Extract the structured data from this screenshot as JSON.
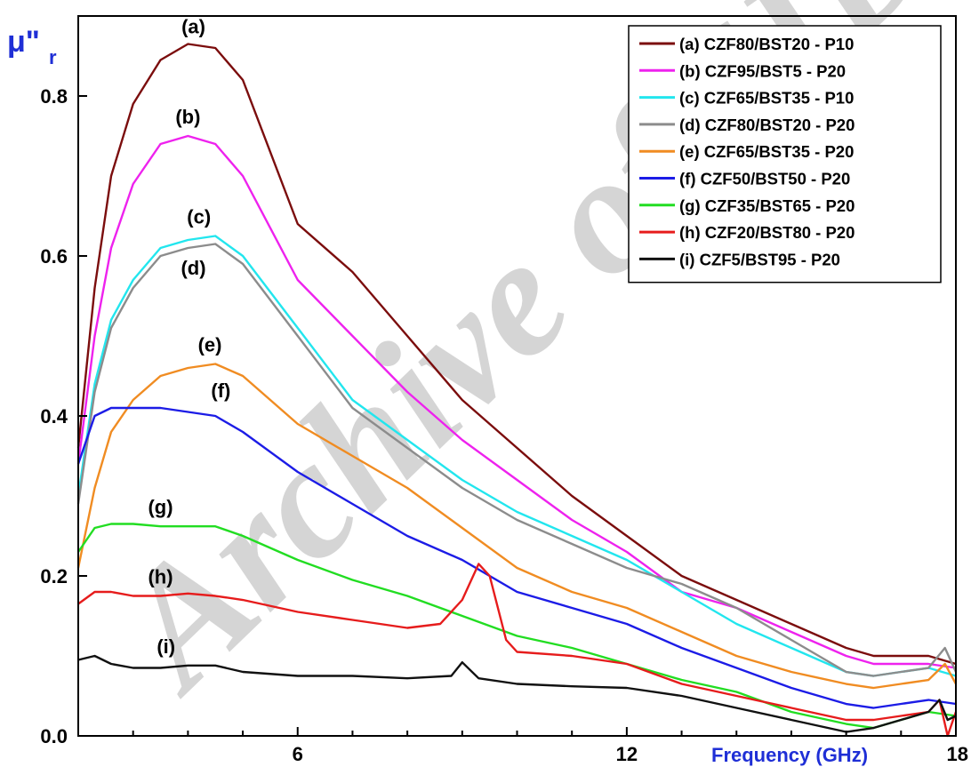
{
  "chart_data": {
    "type": "line",
    "ylabel": "μ\"r",
    "xlabel": "Frequency (GHz)",
    "xlim": [
      2,
      18
    ],
    "ylim": [
      0,
      0.9
    ],
    "x_ticks": [
      6,
      12,
      18
    ],
    "y_ticks": [
      0.0,
      0.2,
      0.4,
      0.6,
      0.8
    ],
    "x_tick_labels": [
      "6",
      "12",
      "18"
    ],
    "y_tick_labels": [
      "0.0",
      "0.2",
      "0.4",
      "0.6",
      "0.8"
    ],
    "grid": false,
    "legend_position": "top-right",
    "watermark": "Archive of SID",
    "series": [
      {
        "name": "(a) CZF80/BST20 - P10",
        "curve_label": "(a)",
        "color": "#7b0d0d",
        "points": [
          [
            2.0,
            0.36
          ],
          [
            2.3,
            0.56
          ],
          [
            2.6,
            0.7
          ],
          [
            3.0,
            0.79
          ],
          [
            3.5,
            0.845
          ],
          [
            4.0,
            0.865
          ],
          [
            4.5,
            0.86
          ],
          [
            5.0,
            0.82
          ],
          [
            6.0,
            0.64
          ],
          [
            7.0,
            0.58
          ],
          [
            8.0,
            0.5
          ],
          [
            9.0,
            0.42
          ],
          [
            10.0,
            0.36
          ],
          [
            11.0,
            0.3
          ],
          [
            12.0,
            0.25
          ],
          [
            13.0,
            0.2
          ],
          [
            14.0,
            0.17
          ],
          [
            15.0,
            0.14
          ],
          [
            16.0,
            0.11
          ],
          [
            16.5,
            0.1
          ],
          [
            17.0,
            0.1
          ],
          [
            17.5,
            0.1
          ],
          [
            18.0,
            0.09
          ]
        ]
      },
      {
        "name": "(b) CZF95/BST5 - P20",
        "curve_label": "(b)",
        "color": "#ee22ee",
        "points": [
          [
            2.0,
            0.34
          ],
          [
            2.3,
            0.5
          ],
          [
            2.6,
            0.61
          ],
          [
            3.0,
            0.69
          ],
          [
            3.5,
            0.74
          ],
          [
            4.0,
            0.75
          ],
          [
            4.5,
            0.74
          ],
          [
            5.0,
            0.7
          ],
          [
            6.0,
            0.57
          ],
          [
            7.0,
            0.5
          ],
          [
            8.0,
            0.43
          ],
          [
            9.0,
            0.37
          ],
          [
            10.0,
            0.32
          ],
          [
            11.0,
            0.27
          ],
          [
            12.0,
            0.23
          ],
          [
            13.0,
            0.18
          ],
          [
            14.0,
            0.16
          ],
          [
            15.0,
            0.13
          ],
          [
            16.0,
            0.1
          ],
          [
            16.5,
            0.09
          ],
          [
            17.0,
            0.09
          ],
          [
            17.5,
            0.09
          ],
          [
            18.0,
            0.085
          ]
        ]
      },
      {
        "name": "(c) CZF65/BST35 - P10",
        "curve_label": "(c)",
        "color": "#22e6ee",
        "points": [
          [
            2.0,
            0.3
          ],
          [
            2.3,
            0.44
          ],
          [
            2.6,
            0.52
          ],
          [
            3.0,
            0.57
          ],
          [
            3.5,
            0.61
          ],
          [
            4.0,
            0.62
          ],
          [
            4.5,
            0.625
          ],
          [
            5.0,
            0.6
          ],
          [
            6.0,
            0.51
          ],
          [
            7.0,
            0.42
          ],
          [
            8.0,
            0.37
          ],
          [
            9.0,
            0.32
          ],
          [
            10.0,
            0.28
          ],
          [
            11.0,
            0.25
          ],
          [
            12.0,
            0.22
          ],
          [
            13.0,
            0.18
          ],
          [
            14.0,
            0.14
          ],
          [
            15.0,
            0.11
          ],
          [
            16.0,
            0.08
          ],
          [
            16.5,
            0.075
          ],
          [
            17.0,
            0.08
          ],
          [
            17.5,
            0.085
          ],
          [
            18.0,
            0.075
          ]
        ]
      },
      {
        "name": "(d) CZF80/BST20 - P20",
        "curve_label": "(d)",
        "color": "#8c8c8c",
        "points": [
          [
            2.0,
            0.29
          ],
          [
            2.3,
            0.43
          ],
          [
            2.6,
            0.51
          ],
          [
            3.0,
            0.56
          ],
          [
            3.5,
            0.6
          ],
          [
            4.0,
            0.61
          ],
          [
            4.5,
            0.615
          ],
          [
            5.0,
            0.59
          ],
          [
            6.0,
            0.5
          ],
          [
            7.0,
            0.41
          ],
          [
            8.0,
            0.36
          ],
          [
            9.0,
            0.31
          ],
          [
            10.0,
            0.27
          ],
          [
            11.0,
            0.24
          ],
          [
            12.0,
            0.21
          ],
          [
            13.0,
            0.19
          ],
          [
            14.0,
            0.16
          ],
          [
            15.0,
            0.12
          ],
          [
            16.0,
            0.08
          ],
          [
            16.5,
            0.075
          ],
          [
            17.0,
            0.08
          ],
          [
            17.5,
            0.085
          ],
          [
            17.8,
            0.11
          ],
          [
            18.0,
            0.08
          ]
        ]
      },
      {
        "name": "(e) CZF65/BST35 - P20",
        "curve_label": "(e)",
        "color": "#f08c22",
        "points": [
          [
            2.0,
            0.21
          ],
          [
            2.3,
            0.31
          ],
          [
            2.6,
            0.38
          ],
          [
            3.0,
            0.42
          ],
          [
            3.5,
            0.45
          ],
          [
            4.0,
            0.46
          ],
          [
            4.5,
            0.465
          ],
          [
            5.0,
            0.45
          ],
          [
            6.0,
            0.39
          ],
          [
            7.0,
            0.35
          ],
          [
            8.0,
            0.31
          ],
          [
            9.0,
            0.26
          ],
          [
            10.0,
            0.21
          ],
          [
            11.0,
            0.18
          ],
          [
            12.0,
            0.16
          ],
          [
            13.0,
            0.13
          ],
          [
            14.0,
            0.1
          ],
          [
            15.0,
            0.08
          ],
          [
            16.0,
            0.065
          ],
          [
            16.5,
            0.06
          ],
          [
            17.0,
            0.065
          ],
          [
            17.5,
            0.07
          ],
          [
            17.8,
            0.09
          ],
          [
            18.0,
            0.065
          ]
        ]
      },
      {
        "name": "(f) CZF50/BST50 - P20",
        "curve_label": "(f)",
        "color": "#1c1ce6",
        "points": [
          [
            2.0,
            0.34
          ],
          [
            2.3,
            0.4
          ],
          [
            2.6,
            0.41
          ],
          [
            3.0,
            0.41
          ],
          [
            3.5,
            0.41
          ],
          [
            4.0,
            0.405
          ],
          [
            4.5,
            0.4
          ],
          [
            5.0,
            0.38
          ],
          [
            6.0,
            0.33
          ],
          [
            7.0,
            0.29
          ],
          [
            8.0,
            0.25
          ],
          [
            9.0,
            0.22
          ],
          [
            10.0,
            0.18
          ],
          [
            11.0,
            0.16
          ],
          [
            12.0,
            0.14
          ],
          [
            13.0,
            0.11
          ],
          [
            14.0,
            0.085
          ],
          [
            15.0,
            0.06
          ],
          [
            16.0,
            0.04
          ],
          [
            16.5,
            0.035
          ],
          [
            17.0,
            0.04
          ],
          [
            17.5,
            0.045
          ],
          [
            18.0,
            0.04
          ]
        ]
      },
      {
        "name": "(g) CZF35/BST65 - P20",
        "curve_label": "(g)",
        "color": "#22dd22",
        "points": [
          [
            2.0,
            0.23
          ],
          [
            2.3,
            0.26
          ],
          [
            2.6,
            0.265
          ],
          [
            3.0,
            0.265
          ],
          [
            3.5,
            0.262
          ],
          [
            4.0,
            0.262
          ],
          [
            4.5,
            0.262
          ],
          [
            5.0,
            0.25
          ],
          [
            6.0,
            0.22
          ],
          [
            7.0,
            0.195
          ],
          [
            8.0,
            0.175
          ],
          [
            9.0,
            0.15
          ],
          [
            10.0,
            0.125
          ],
          [
            11.0,
            0.11
          ],
          [
            12.0,
            0.09
          ],
          [
            13.0,
            0.07
          ],
          [
            14.0,
            0.055
          ],
          [
            15.0,
            0.03
          ],
          [
            16.0,
            0.015
          ],
          [
            16.5,
            0.01
          ],
          [
            17.0,
            0.02
          ],
          [
            17.5,
            0.03
          ],
          [
            18.0,
            0.025
          ]
        ]
      },
      {
        "name": "(h) CZF20/BST80 - P20",
        "curve_label": "(h)",
        "color": "#e61c1c",
        "points": [
          [
            2.0,
            0.165
          ],
          [
            2.3,
            0.18
          ],
          [
            2.6,
            0.18
          ],
          [
            3.0,
            0.175
          ],
          [
            3.5,
            0.175
          ],
          [
            4.0,
            0.178
          ],
          [
            4.5,
            0.175
          ],
          [
            5.0,
            0.17
          ],
          [
            6.0,
            0.155
          ],
          [
            7.0,
            0.145
          ],
          [
            8.0,
            0.135
          ],
          [
            8.6,
            0.14
          ],
          [
            9.0,
            0.17
          ],
          [
            9.3,
            0.215
          ],
          [
            9.5,
            0.2
          ],
          [
            9.8,
            0.12
          ],
          [
            10.0,
            0.105
          ],
          [
            11.0,
            0.1
          ],
          [
            12.0,
            0.09
          ],
          [
            13.0,
            0.065
          ],
          [
            14.0,
            0.05
          ],
          [
            15.0,
            0.035
          ],
          [
            16.0,
            0.02
          ],
          [
            16.5,
            0.02
          ],
          [
            17.0,
            0.025
          ],
          [
            17.5,
            0.03
          ],
          [
            17.7,
            0.045
          ],
          [
            17.85,
            0.0
          ],
          [
            18.0,
            0.03
          ]
        ]
      },
      {
        "name": "(i) CZF5/BST95 - P20",
        "curve_label": "(i)",
        "color": "#111111",
        "points": [
          [
            2.0,
            0.095
          ],
          [
            2.3,
            0.1
          ],
          [
            2.6,
            0.09
          ],
          [
            3.0,
            0.085
          ],
          [
            3.5,
            0.085
          ],
          [
            4.0,
            0.088
          ],
          [
            4.5,
            0.088
          ],
          [
            5.0,
            0.08
          ],
          [
            6.0,
            0.075
          ],
          [
            7.0,
            0.075
          ],
          [
            8.0,
            0.072
          ],
          [
            8.8,
            0.075
          ],
          [
            9.0,
            0.092
          ],
          [
            9.3,
            0.072
          ],
          [
            10.0,
            0.065
          ],
          [
            11.0,
            0.062
          ],
          [
            12.0,
            0.06
          ],
          [
            13.0,
            0.05
          ],
          [
            14.0,
            0.035
          ],
          [
            15.0,
            0.02
          ],
          [
            16.0,
            0.005
          ],
          [
            16.5,
            0.01
          ],
          [
            17.0,
            0.02
          ],
          [
            17.5,
            0.03
          ],
          [
            17.7,
            0.045
          ],
          [
            17.85,
            0.02
          ],
          [
            18.0,
            0.025
          ]
        ]
      }
    ]
  }
}
